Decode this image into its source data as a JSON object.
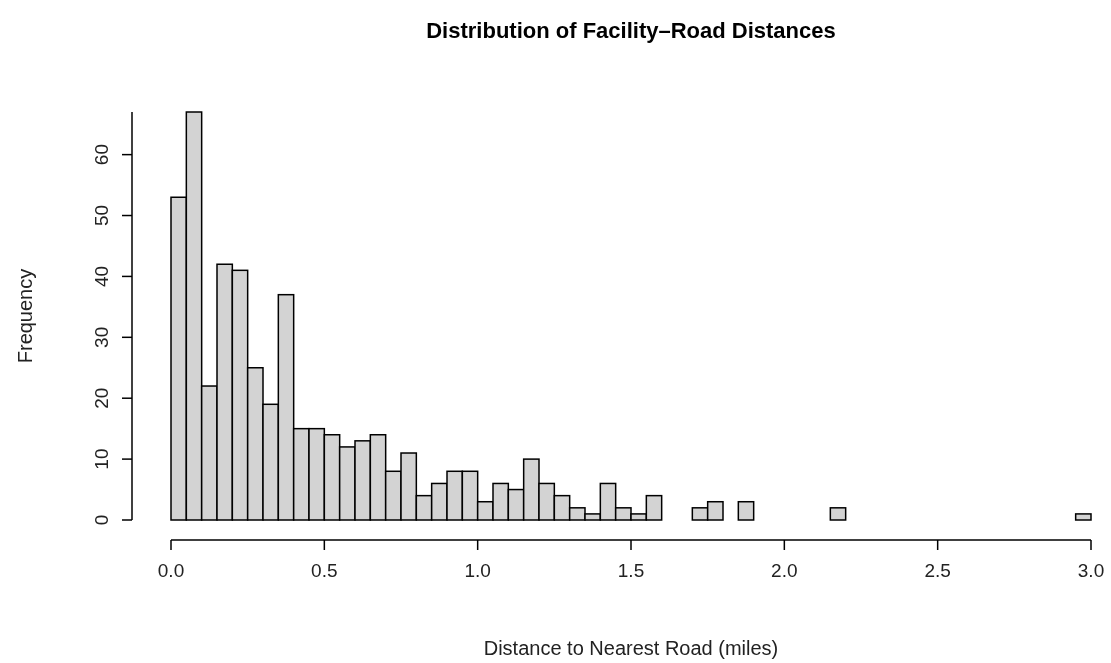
{
  "chart_data": {
    "type": "histogram",
    "title": "Distribution of Facility–Road Distances",
    "xlabel": "Distance to Nearest Road (miles)",
    "ylabel": "Frequency",
    "bins": [
      0,
      0.05,
      0.1,
      0.15,
      0.2,
      0.25,
      0.3,
      0.35,
      0.4,
      0.45,
      0.5,
      0.55,
      0.6,
      0.65,
      0.7,
      0.75,
      0.8,
      0.85,
      0.9,
      0.95,
      1.0,
      1.05,
      1.1,
      1.15,
      1.2,
      1.25,
      1.3,
      1.35,
      1.4,
      1.45,
      1.5,
      1.55,
      1.6,
      1.65,
      1.7,
      1.75,
      1.8,
      1.85,
      1.9,
      1.95,
      2.0,
      2.05,
      2.1,
      2.15,
      2.2,
      2.25,
      2.3,
      2.35,
      2.4,
      2.45,
      2.5,
      2.55,
      2.6,
      2.65,
      2.7,
      2.75,
      2.8,
      2.85,
      2.9,
      2.95,
      3.0
    ],
    "values": [
      53,
      67,
      22,
      42,
      41,
      25,
      19,
      37,
      15,
      15,
      14,
      12,
      13,
      14,
      8,
      11,
      4,
      6,
      8,
      8,
      3,
      6,
      5,
      10,
      6,
      4,
      2,
      1,
      6,
      2,
      1,
      4,
      0,
      0,
      2,
      3,
      0,
      3,
      0,
      0,
      0,
      0,
      0,
      2,
      0,
      0,
      0,
      0,
      0,
      0,
      0,
      0,
      0,
      0,
      0,
      0,
      0,
      0,
      0,
      1
    ],
    "color": "#d3d3d3",
    "xlim": [
      0,
      3.0
    ],
    "xticks": [
      {
        "value": 0,
        "label": "0.0"
      },
      {
        "value": 0.5,
        "label": "0.5"
      },
      {
        "value": 1,
        "label": "1.0"
      },
      {
        "value": 1.5,
        "label": "1.5"
      },
      {
        "value": 2,
        "label": "2.0"
      },
      {
        "value": 2.5,
        "label": "2.5"
      },
      {
        "value": 3,
        "label": "3.0"
      }
    ],
    "ylim": [
      0,
      67
    ],
    "yticks": [
      0,
      10,
      20,
      30,
      40,
      50,
      60
    ],
    "grid": false
  }
}
